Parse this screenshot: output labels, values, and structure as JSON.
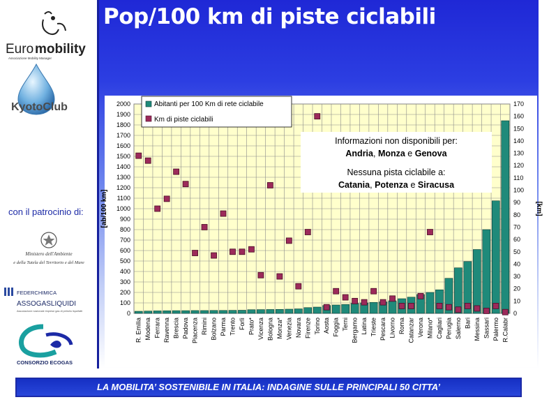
{
  "slide": {
    "title": "Pop/100 km di piste ciclabili",
    "footer": "LA MOBILITA’ SOSTENIBILE IN ITALIA: INDAGINE SULLE PRINCIPALI 50 CITTA’"
  },
  "sidebar": {
    "logo_euro": "Euro",
    "logo_mobility": "mobility",
    "logo_tagline": "Associazione Mobility Manager",
    "kyoto_label": "KyotoClub",
    "patronage": "con il patrocinio di:",
    "ministry_line1": "Ministero dell'Ambiente",
    "ministry_line2": "e della Tutela del Territorio e del Mare",
    "federchimica": "FEDERCHIMICA",
    "assogasliquidi": "ASSOGASLIQUIDI",
    "assogas_sub": "Associazione nazionale imprese gas di petrolio liquefatti",
    "ecogas": "CONSORZIO ECOGAS"
  },
  "colors": {
    "bar": "#1f8a7a",
    "marker": "#9c2a5a",
    "plot_bg": "#ffffcc",
    "accent": "#1c2aa6"
  },
  "chart_data": {
    "type": "bar",
    "categories": [
      "R. Emilia",
      "Modena",
      "Ferrara",
      "Ravenna",
      "Brescia",
      "Padova",
      "Piacenza",
      "Rimini",
      "Bolzano",
      "Parma",
      "Trento",
      "Forlì",
      "Prato*",
      "Vicenza",
      "Bologna",
      "Monza*",
      "Venezia",
      "Novara",
      "Firenze",
      "Torino",
      "Aosta",
      "Foggia",
      "Terni",
      "Bergamo",
      "Latina",
      "Trieste",
      "Pescara",
      "Livorno",
      "Roma",
      "Catanzar",
      "Verona",
      "Milano*",
      "Cagliari",
      "Perugia",
      "Salerno",
      "Bari",
      "Messina",
      "Sassari",
      "Palermo",
      "R.Calabr"
    ],
    "series": [
      {
        "name": "Abitanti per 100 Km di rete ciclabile",
        "axis": "left",
        "type": "bar",
        "values": [
          20,
          22,
          24,
          25,
          26,
          26,
          27,
          27,
          28,
          28,
          29,
          30,
          35,
          36,
          37,
          38,
          40,
          43,
          55,
          60,
          75,
          80,
          85,
          95,
          100,
          105,
          110,
          120,
          140,
          155,
          180,
          200,
          225,
          335,
          435,
          495,
          610,
          800,
          1075,
          1840
        ]
      },
      {
        "name": "Km di piste ciclabili",
        "axis": "right",
        "type": "scatter",
        "values": [
          128,
          124,
          85,
          93,
          115,
          105,
          49,
          70,
          47,
          81,
          50,
          50,
          52,
          31,
          104,
          30,
          59,
          22,
          66,
          160,
          5,
          18,
          13,
          10,
          9,
          18,
          9,
          12,
          6,
          6,
          14,
          66,
          6,
          5,
          3,
          6,
          4,
          2,
          6,
          1
        ]
      }
    ],
    "y_left": {
      "label": "[ab/100 km]",
      "min": 0,
      "max": 2000,
      "ticks": [
        0,
        100,
        200,
        300,
        400,
        500,
        600,
        700,
        800,
        900,
        1000,
        1100,
        1200,
        1300,
        1400,
        1500,
        1600,
        1700,
        1800,
        1900,
        2000
      ]
    },
    "y_right": {
      "label": "[km]",
      "min": 0,
      "max": 170,
      "ticks": [
        0,
        10,
        20,
        30,
        40,
        50,
        60,
        70,
        80,
        90,
        100,
        110,
        120,
        130,
        140,
        150,
        160,
        170
      ]
    },
    "grid": true,
    "legend": "top-left",
    "annotation": {
      "line1": "Informazioni non disponibili per:",
      "line2_parts": [
        "Andria",
        ", ",
        "Monza",
        " e ",
        "Genova"
      ],
      "line3": "Nessuna pista ciclabile a:",
      "line4_parts": [
        "Catania",
        ", ",
        "Potenza",
        " e ",
        "Siracusa"
      ]
    }
  }
}
